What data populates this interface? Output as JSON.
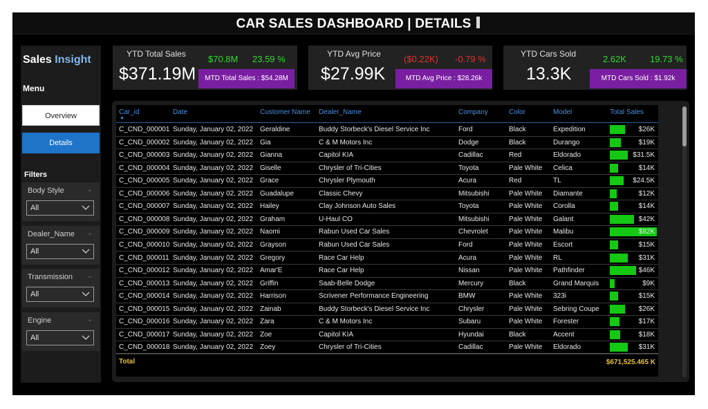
{
  "header": {
    "title": "CAR SALES DASHBOARD | DETAILS"
  },
  "sidebar": {
    "brand_a": "Sales",
    "brand_b": "Insight",
    "menu_heading": "Menu",
    "nav": [
      {
        "label": "Overview",
        "active": false
      },
      {
        "label": "Details",
        "active": true
      }
    ],
    "filters_heading": "Filters",
    "filters": [
      {
        "label": "Body Style",
        "value": "All"
      },
      {
        "label": "Dealer_Name",
        "value": "All"
      },
      {
        "label": "Transmission",
        "value": "All"
      },
      {
        "label": "Engine",
        "value": "All"
      }
    ]
  },
  "kpis": [
    {
      "title": "YTD Total Sales",
      "value": "$371.19M",
      "v1": "$70.8M",
      "v1_status": "positive",
      "v2": "23.59 %",
      "v2_status": "positive",
      "mtd": "MTD Total Sales : $54.28M"
    },
    {
      "title": "YTD Avg Price",
      "value": "$27.99K",
      "v1": "($0.22K)",
      "v1_status": "negative",
      "v2": "-0.79 %",
      "v2_status": "negative",
      "mtd": "MTD Avg Price : $28.26k"
    },
    {
      "title": "YTD Cars Sold",
      "value": "13.3K",
      "v1": "2.62K",
      "v1_status": "positive",
      "v2": "19.73 %",
      "v2_status": "positive",
      "mtd": "MTD Cars Sold : $1.92k"
    }
  ],
  "table": {
    "columns": [
      "Car_id",
      "Date",
      "Customer Name",
      "Dealer_Name",
      "Company",
      "Color",
      "Model",
      "Total Sales"
    ],
    "sales_max": 82,
    "rows": [
      {
        "car_id": "C_CND_000001",
        "date": "Sunday, January 02, 2022",
        "customer": "Geraldine",
        "dealer": "Buddy Storbeck's Diesel Service Inc",
        "company": "Ford",
        "color": "Black",
        "model": "Expedition",
        "sales": "$26K",
        "sales_k": 26
      },
      {
        "car_id": "C_CND_000002",
        "date": "Sunday, January 02, 2022",
        "customer": "Gia",
        "dealer": "C & M Motors Inc",
        "company": "Dodge",
        "color": "Black",
        "model": "Durango",
        "sales": "$19K",
        "sales_k": 19
      },
      {
        "car_id": "C_CND_000003",
        "date": "Sunday, January 02, 2022",
        "customer": "Gianna",
        "dealer": "Capitol KIA",
        "company": "Cadillac",
        "color": "Red",
        "model": "Eldorado",
        "sales": "$31.5K",
        "sales_k": 31.5
      },
      {
        "car_id": "C_CND_000004",
        "date": "Sunday, January 02, 2022",
        "customer": "Giselle",
        "dealer": "Chrysler of Tri-Cities",
        "company": "Toyota",
        "color": "Pale White",
        "model": "Celica",
        "sales": "$14K",
        "sales_k": 14
      },
      {
        "car_id": "C_CND_000005",
        "date": "Sunday, January 02, 2022",
        "customer": "Grace",
        "dealer": "Chrysler Plymouth",
        "company": "Acura",
        "color": "Red",
        "model": "TL",
        "sales": "$24.5K",
        "sales_k": 24.5
      },
      {
        "car_id": "C_CND_000006",
        "date": "Sunday, January 02, 2022",
        "customer": "Guadalupe",
        "dealer": "Classic Chevy",
        "company": "Mitsubishi",
        "color": "Pale White",
        "model": "Diamante",
        "sales": "$12K",
        "sales_k": 12
      },
      {
        "car_id": "C_CND_000007",
        "date": "Sunday, January 02, 2022",
        "customer": "Hailey",
        "dealer": "Clay Johnson Auto Sales",
        "company": "Toyota",
        "color": "Pale White",
        "model": "Corolla",
        "sales": "$14K",
        "sales_k": 14
      },
      {
        "car_id": "C_CND_000008",
        "date": "Sunday, January 02, 2022",
        "customer": "Graham",
        "dealer": "U-Haul CO",
        "company": "Mitsubishi",
        "color": "Pale White",
        "model": "Galant",
        "sales": "$42K",
        "sales_k": 42
      },
      {
        "car_id": "C_CND_000009",
        "date": "Sunday, January 02, 2022",
        "customer": "Naomi",
        "dealer": "Rabun Used Car Sales",
        "company": "Chevrolet",
        "color": "Pale White",
        "model": "Malibu",
        "sales": "$82K",
        "sales_k": 82
      },
      {
        "car_id": "C_CND_000010",
        "date": "Sunday, January 02, 2022",
        "customer": "Grayson",
        "dealer": "Rabun Used Car Sales",
        "company": "Ford",
        "color": "Pale White",
        "model": "Escort",
        "sales": "$15K",
        "sales_k": 15
      },
      {
        "car_id": "C_CND_000011",
        "date": "Sunday, January 02, 2022",
        "customer": "Gregory",
        "dealer": "Race Car Help",
        "company": "Acura",
        "color": "Pale White",
        "model": "RL",
        "sales": "$31K",
        "sales_k": 31
      },
      {
        "car_id": "C_CND_000012",
        "date": "Sunday, January 02, 2022",
        "customer": "Amar'E",
        "dealer": "Race Car Help",
        "company": "Nissan",
        "color": "Pale White",
        "model": "Pathfinder",
        "sales": "$46K",
        "sales_k": 46
      },
      {
        "car_id": "C_CND_000013",
        "date": "Sunday, January 02, 2022",
        "customer": "Griffin",
        "dealer": "Saab-Belle Dodge",
        "company": "Mercury",
        "color": "Black",
        "model": "Grand Marquis",
        "sales": "$9K",
        "sales_k": 9
      },
      {
        "car_id": "C_CND_000014",
        "date": "Sunday, January 02, 2022",
        "customer": "Harrison",
        "dealer": "Scrivener Performance Engineering",
        "company": "BMW",
        "color": "Pale White",
        "model": "323i",
        "sales": "$15K",
        "sales_k": 15
      },
      {
        "car_id": "C_CND_000015",
        "date": "Sunday, January 02, 2022",
        "customer": "Zainab",
        "dealer": "Buddy Storbeck's Diesel Service Inc",
        "company": "Chrysler",
        "color": "Pale White",
        "model": "Sebring Coupe",
        "sales": "$26K",
        "sales_k": 26
      },
      {
        "car_id": "C_CND_000016",
        "date": "Sunday, January 02, 2022",
        "customer": "Zara",
        "dealer": "C & M Motors Inc",
        "company": "Subaru",
        "color": "Pale White",
        "model": "Forester",
        "sales": "$17K",
        "sales_k": 17
      },
      {
        "car_id": "C_CND_000017",
        "date": "Sunday, January 02, 2022",
        "customer": "Zoe",
        "dealer": "Capitol KIA",
        "company": "Hyundai",
        "color": "Black",
        "model": "Accent",
        "sales": "$18K",
        "sales_k": 18
      },
      {
        "car_id": "C_CND_000018",
        "date": "Sunday, January 02, 2022",
        "customer": "Zoey",
        "dealer": "Chrysler of Tri-Cities",
        "company": "Cadillac",
        "color": "Pale White",
        "model": "Eldorado",
        "sales": "$31K",
        "sales_k": 31
      }
    ],
    "total_label": "Total",
    "total_value": "$671,525.465 K"
  },
  "colors": {
    "accent_blue": "#1d74c8",
    "header_blue": "#4a8fe0",
    "positive": "#2fd92f",
    "negative": "#e0322c",
    "mtd_purple": "#7a1fa1",
    "bar_green": "#14c814",
    "total_gold": "#e8c03a"
  },
  "icons": {
    "filter_dropdown": "chevron-down-icon",
    "sort_indicator": "sort-ascending-icon"
  }
}
